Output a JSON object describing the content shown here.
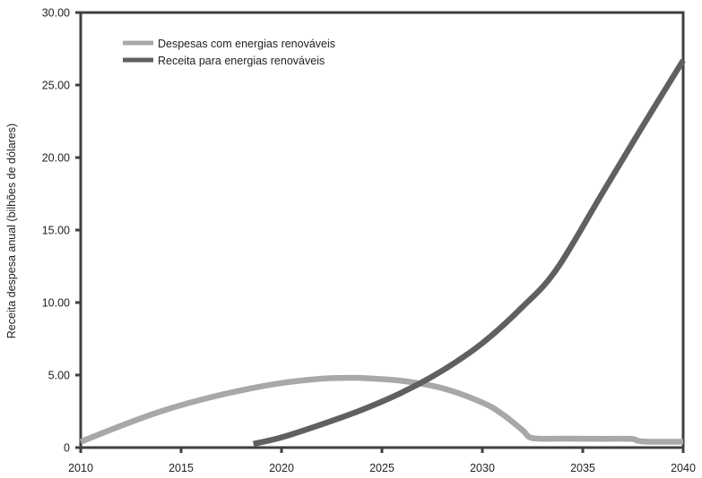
{
  "chart_data": {
    "type": "line",
    "title": "",
    "xlabel": "",
    "ylabel": "Receita despesa anual (bilhões de dólares)",
    "xlim": [
      2010,
      2040
    ],
    "ylim": [
      0,
      30
    ],
    "xticks": [
      2010,
      2015,
      2020,
      2025,
      2030,
      2035,
      2040
    ],
    "xtick_labels": [
      "2010",
      "2015",
      "2020",
      "2025",
      "2030",
      "2035",
      "2040"
    ],
    "yticks": [
      0,
      5,
      10,
      15,
      20,
      25,
      30
    ],
    "ytick_labels": [
      "0",
      "5.00",
      "10.00",
      "15.00",
      "20.00",
      "25.00",
      "30.00"
    ],
    "grid": false,
    "legend_position": "top-left",
    "series": [
      {
        "name": "Despesas com energias renováveis",
        "color": "#a8a8a8",
        "x": [
          2010,
          2012,
          2014,
          2016,
          2018,
          2020,
          2022,
          2023,
          2024,
          2026,
          2028,
          2030,
          2031,
          2032,
          2032.5,
          2034,
          2036,
          2037.4,
          2038,
          2040
        ],
        "y": [
          0.4,
          1.5,
          2.5,
          3.3,
          3.95,
          4.45,
          4.75,
          4.8,
          4.8,
          4.6,
          4.1,
          3.1,
          2.3,
          1.2,
          0.65,
          0.62,
          0.6,
          0.6,
          0.42,
          0.4
        ]
      },
      {
        "name": "Receita para energias renováveis",
        "color": "#606060",
        "x": [
          2018.6,
          2020,
          2022,
          2024,
          2026,
          2028,
          2030,
          2032,
          2033.7,
          2036,
          2038,
          2040
        ],
        "y": [
          0.25,
          0.7,
          1.6,
          2.6,
          3.8,
          5.3,
          7.2,
          9.7,
          12.3,
          17.6,
          22.2,
          26.7
        ]
      }
    ]
  }
}
